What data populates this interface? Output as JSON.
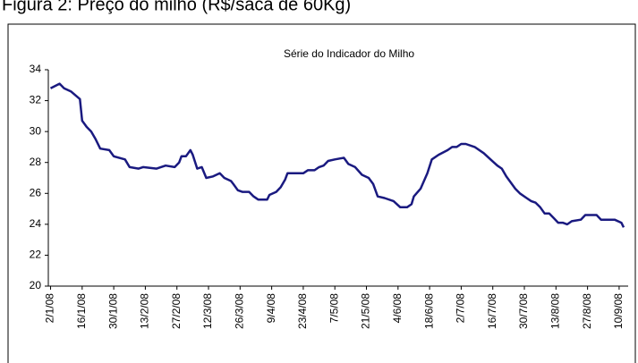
{
  "heading": "Figura 2: Preço do milho (R$/saca de 60Kg)",
  "chart_data": {
    "type": "line",
    "title": "Série do Indicador do Milho",
    "color": "#1a1a80",
    "x": [
      0,
      4,
      6,
      9,
      13,
      14,
      16,
      18,
      20,
      22,
      26,
      28,
      33,
      35,
      39,
      41,
      47,
      51,
      55,
      57,
      58,
      60,
      62,
      63,
      65,
      67,
      69,
      72,
      75,
      77,
      80,
      81,
      83,
      85,
      88,
      90,
      92,
      96,
      97,
      100,
      102,
      104,
      105,
      112,
      114,
      117,
      119,
      121,
      123,
      126,
      130,
      132,
      135,
      138,
      141,
      143,
      145,
      148,
      152,
      155,
      158,
      160,
      161,
      164,
      167,
      169,
      172,
      176,
      178,
      180,
      182,
      184,
      188,
      192,
      195,
      198,
      200,
      202,
      204,
      206,
      208,
      211,
      213,
      215,
      217,
      219,
      221,
      223,
      225,
      227,
      229,
      231,
      235,
      237,
      242,
      244,
      250,
      253,
      254
    ],
    "values": [
      32.8,
      33.1,
      32.8,
      32.6,
      32.1,
      30.7,
      30.3,
      30.0,
      29.5,
      28.9,
      28.8,
      28.4,
      28.2,
      27.7,
      27.6,
      27.7,
      27.6,
      27.8,
      27.7,
      28.0,
      28.4,
      28.4,
      28.8,
      28.5,
      27.6,
      27.7,
      27.0,
      27.1,
      27.3,
      27.0,
      26.8,
      26.6,
      26.2,
      26.1,
      26.1,
      25.8,
      25.6,
      25.6,
      25.9,
      26.1,
      26.4,
      26.9,
      27.3,
      27.3,
      27.5,
      27.5,
      27.7,
      27.8,
      28.1,
      28.2,
      28.3,
      27.9,
      27.7,
      27.2,
      27.0,
      26.6,
      25.8,
      25.7,
      25.5,
      25.1,
      25.1,
      25.3,
      25.8,
      26.3,
      27.3,
      28.2,
      28.5,
      28.8,
      29.0,
      29.0,
      29.2,
      29.2,
      29.0,
      28.6,
      28.2,
      27.8,
      27.6,
      27.1,
      26.7,
      26.3,
      26.0,
      25.7,
      25.5,
      25.4,
      25.1,
      24.7,
      24.7,
      24.4,
      24.1,
      24.1,
      24.0,
      24.2,
      24.3,
      24.6,
      24.6,
      24.3,
      24.3,
      24.1,
      23.8
    ],
    "xlim": [
      -1,
      256
    ],
    "xticks": [
      {
        "value": 0,
        "label": "2/1/08"
      },
      {
        "value": 14,
        "label": "16/1/08"
      },
      {
        "value": 28,
        "label": "30/1/08"
      },
      {
        "value": 42,
        "label": "13/2/08"
      },
      {
        "value": 56,
        "label": "27/2/08"
      },
      {
        "value": 70,
        "label": "12/3/08"
      },
      {
        "value": 84,
        "label": "26/3/08"
      },
      {
        "value": 98,
        "label": "9/4/08"
      },
      {
        "value": 112,
        "label": "23/4/08"
      },
      {
        "value": 126,
        "label": "7/5/08"
      },
      {
        "value": 140,
        "label": "21/5/08"
      },
      {
        "value": 154,
        "label": "4/6/08"
      },
      {
        "value": 168,
        "label": "18/6/08"
      },
      {
        "value": 182,
        "label": "2/7/08"
      },
      {
        "value": 196,
        "label": "16/7/08"
      },
      {
        "value": 210,
        "label": "30/7/08"
      },
      {
        "value": 224,
        "label": "13/8/08"
      },
      {
        "value": 238,
        "label": "27/8/08"
      },
      {
        "value": 252,
        "label": "10/9/08"
      }
    ],
    "ylim": [
      20,
      34
    ],
    "yticks": [
      20,
      22,
      24,
      26,
      28,
      30,
      32,
      34
    ],
    "grid": false
  }
}
